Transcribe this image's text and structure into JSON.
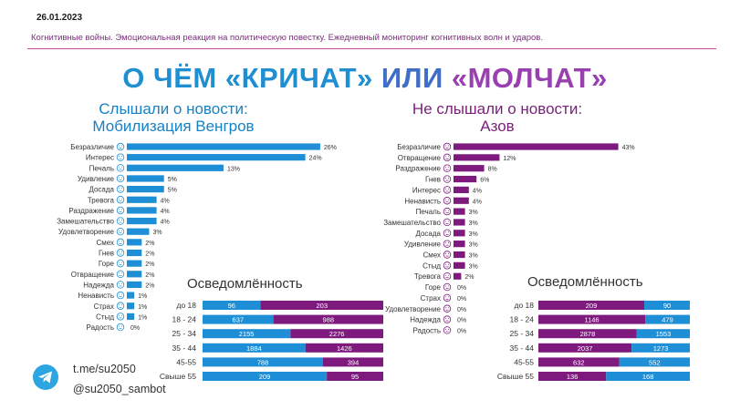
{
  "header": {
    "date": "26.01.2023",
    "subtitle": "Когнитивные войны. Эмоциональная реакция на политическую повестку. Ежедневный мониторинг когнитивных волн и ударов.",
    "headline_part1": "О ЧЁМ «КРИЧАТ» ",
    "headline_part2": "ИЛИ ",
    "headline_part3": "«МОЛЧАТ»"
  },
  "left_panel": {
    "title_line1": "Слышали о новости:",
    "title_line2": "Мобилизация Венгров"
  },
  "right_panel": {
    "title_line1": "Не слышали о новости:",
    "title_line2": "Азов"
  },
  "footer": {
    "icon": "telegram-icon",
    "link": "t.me/su2050",
    "handle": "@su2050_sambot"
  },
  "colors": {
    "blue": "#1e8fd6",
    "purple": "#7e1a7e",
    "purple_light": "#8a2a8c"
  },
  "chart_data": [
    {
      "type": "bar",
      "orientation": "horizontal",
      "categories": [
        "Безразличие",
        "Интерес",
        "Печаль",
        "Удивление",
        "Досада",
        "Тревога",
        "Раздражение",
        "Замешательство",
        "Удовлетворение",
        "Смех",
        "Гнев",
        "Горе",
        "Отвращение",
        "Надежда",
        "Ненависть",
        "Страх",
        "Стыд",
        "Радость"
      ],
      "values": [
        26,
        24,
        13,
        5,
        5,
        4,
        4,
        4,
        3,
        2,
        2,
        2,
        2,
        2,
        1,
        1,
        1,
        0
      ],
      "value_labels": [
        "26%",
        "24%",
        "13%",
        "5%",
        "5%",
        "4%",
        "4%",
        "4%",
        "3%",
        "2%",
        "2%",
        "2%",
        "2%",
        "2%",
        "1%",
        "1%",
        "1%",
        "0%"
      ],
      "icons": [
        "neutral-face-icon",
        "interest-icon",
        "sad-face-icon",
        "surprised-face-icon",
        "annoyed-face-icon",
        "anxious-face-icon",
        "irritated-face-icon",
        "confused-face-icon",
        "satisfied-face-icon",
        "laughing-face-icon",
        "angry-face-icon",
        "grief-face-icon",
        "disgust-face-icon",
        "hope-icon",
        "hate-face-icon",
        "fear-face-icon",
        "shame-face-icon",
        "joy-face-icon"
      ],
      "color": "#1e8fd6"
    },
    {
      "type": "bar",
      "orientation": "horizontal",
      "categories": [
        "Безразличие",
        "Отвращение",
        "Раздражение",
        "Гнев",
        "Интерес",
        "Ненависть",
        "Печаль",
        "Замешательство",
        "Досада",
        "Удивление",
        "Смех",
        "Стыд",
        "Тревога",
        "Горе",
        "Страх",
        "Удовлетворение",
        "Надежда",
        "Радость"
      ],
      "values": [
        43,
        12,
        8,
        6,
        4,
        4,
        3,
        3,
        3,
        3,
        3,
        3,
        2,
        0,
        0,
        0,
        0,
        0
      ],
      "value_labels": [
        "43%",
        "12%",
        "8%",
        "6%",
        "4%",
        "4%",
        "3%",
        "3%",
        "3%",
        "3%",
        "3%",
        "3%",
        "2%",
        "0%",
        "0%",
        "0%",
        "0%",
        "0%"
      ],
      "icons": [
        "neutral-face-icon",
        "disgust-face-icon",
        "irritated-face-icon",
        "angry-face-icon",
        "interest-icon",
        "hate-face-icon",
        "sad-face-icon",
        "confused-face-icon",
        "annoyed-face-icon",
        "surprised-face-icon",
        "laughing-face-icon",
        "shame-face-icon",
        "anxious-face-icon",
        "grief-face-icon",
        "fear-face-icon",
        "satisfied-face-icon",
        "hope-icon",
        "joy-face-icon"
      ],
      "color": "#7e1a7e"
    },
    {
      "type": "bar",
      "stacked": true,
      "orientation": "horizontal",
      "title": "Осведомлённость",
      "categories": [
        "до 18",
        "18 - 24",
        "25 - 34",
        "35 - 44",
        "45-55",
        "Свыше 55"
      ],
      "series": [
        {
          "values": [
            96,
            637,
            2155,
            1884,
            788,
            209
          ],
          "color": "#1e8fd6"
        },
        {
          "values": [
            203,
            988,
            2276,
            1426,
            394,
            95
          ],
          "color": "#7e1a7e"
        }
      ]
    },
    {
      "type": "bar",
      "stacked": true,
      "orientation": "horizontal",
      "title": "Осведомлённость",
      "categories": [
        "до 18",
        "18 - 24",
        "25 - 34",
        "35 - 44",
        "45-55",
        "Свыше 55"
      ],
      "series": [
        {
          "values": [
            209,
            1146,
            2878,
            2037,
            632,
            136
          ],
          "color": "#7e1a7e"
        },
        {
          "values": [
            90,
            479,
            1553,
            1273,
            552,
            168
          ],
          "color": "#1e8fd6"
        }
      ]
    }
  ]
}
